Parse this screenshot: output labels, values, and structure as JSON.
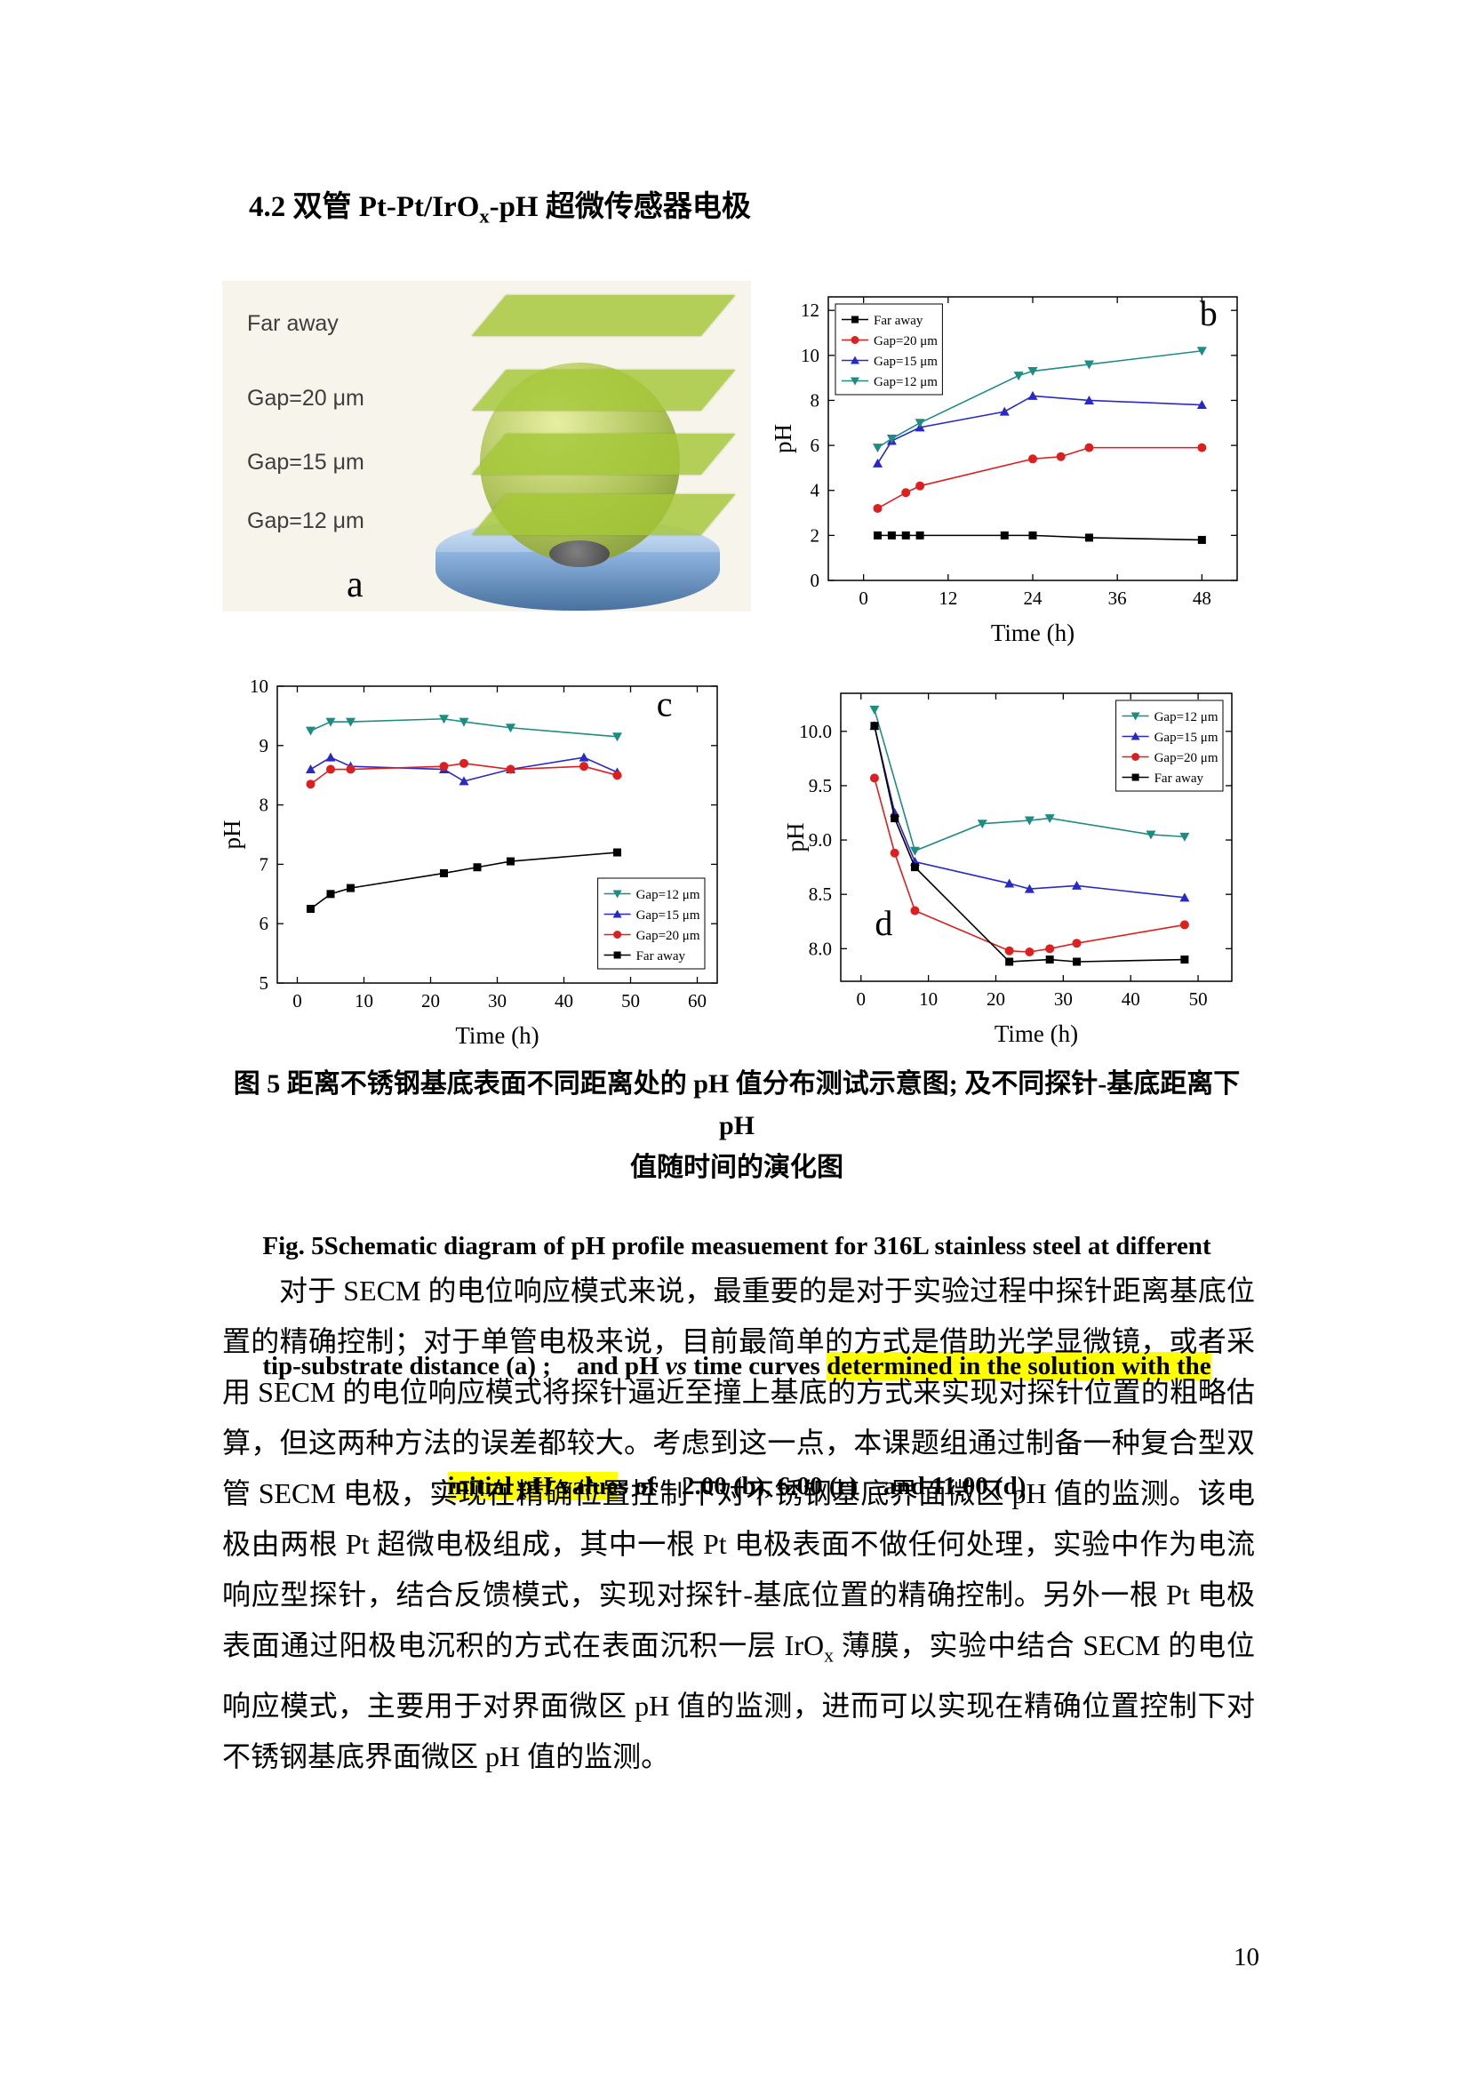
{
  "page": {
    "number": "10"
  },
  "heading": {
    "pre": "4.2 双管 Pt-Pt/IrO",
    "sub": "x",
    "post": "-pH 超微传感器电极"
  },
  "figure": {
    "panel_a": {
      "labels": [
        "Far away",
        "Gap=20 μm",
        "Gap=15 μm",
        "Gap=12 μm"
      ],
      "panel_letter": "a"
    }
  },
  "caption_zh": {
    "line1": "图 5 距离不锈钢基底表面不同距离处的 pH 值分布测试示意图; 及不同探针-基底距离下 pH",
    "line2": "值随时间的演化图"
  },
  "caption_en": {
    "line1": "Fig. 5Schematic diagram of pH profile measuement for 316L stainless steel at different",
    "line2_a": "tip-substrate distance (a) ;    and pH ",
    "line2_vs": "vs",
    "line2_b": " time curves ",
    "line2_hl": "determined in the solution with the",
    "line3_hl": "initial pH value",
    "line3_rest": "s of    2.00 (b), 6.00 (c)    and 11.00 (d)"
  },
  "body": {
    "para_a": "对于 SECM 的电位响应模式来说，最重要的是对于实验过程中探针距离基底位置的精确控制；对于单管电极来说，目前最简单的方式是借助光学显微镜，或者采用 SECM 的电位响应模式将探针逼近至撞上基底的方式来实现对探针位置的粗略估算，但这两种方法的误差都较大。考虑到这一点，本课题组通过制备一种复合型双管 SECM 电极，实现在精确位置控制下对不锈钢基底界面微区 pH 值的监测。该电极由两根 Pt 超微电极组成，其中一根 Pt 电极表面不做任何处理，实验中作为电流响应型探针，结合反馈模式，实现对探针-基底位置的精确控制。另外一根 Pt 电极表面通过阳极电沉积的方式在表面沉积一层 IrO",
    "sub": "x",
    "para_b": " 薄膜，实验中结合 SECM 的电位响应模式，主要用于对界面微区 pH 值的监测，进而可以实现在精确位置控制下对不锈钢基底界面微区 pH 值的监测。"
  },
  "chart_data": [
    {
      "id": "b",
      "type": "line",
      "panel_label": "b",
      "panel_label_pos": [
        0.93,
        0.1
      ],
      "title": "",
      "xlabel": "Time (h)",
      "ylabel": "pH",
      "xlim": [
        -5,
        53
      ],
      "ylim": [
        0,
        12.6
      ],
      "xticks": [
        "0",
        "12",
        "24",
        "36",
        "48"
      ],
      "yticks": [
        "0",
        "2",
        "4",
        "6",
        "8",
        "10",
        "12"
      ],
      "grid": false,
      "legend_pos": "top-left",
      "series": [
        {
          "name": "Far away",
          "color": "#000000",
          "marker": "square",
          "x": [
            2,
            4,
            6,
            8,
            20,
            24,
            32,
            48
          ],
          "y": [
            2.0,
            2.0,
            2.0,
            2.0,
            2.0,
            2.0,
            1.9,
            1.8
          ]
        },
        {
          "name": "Gap=20 μm",
          "color": "#dd1f1f",
          "marker": "circle",
          "x": [
            2,
            6,
            8,
            24,
            28,
            32,
            48
          ],
          "y": [
            3.2,
            3.9,
            4.2,
            5.4,
            5.5,
            5.9,
            5.9
          ]
        },
        {
          "name": "Gap=15 μm",
          "color": "#2929c8",
          "marker": "triangle-up",
          "x": [
            2,
            4,
            8,
            20,
            24,
            32,
            48
          ],
          "y": [
            5.2,
            6.2,
            6.8,
            7.5,
            8.2,
            8.0,
            7.8
          ]
        },
        {
          "name": "Gap=12 μm",
          "color": "#1e8c82",
          "marker": "triangle-down",
          "x": [
            2,
            4,
            8,
            22,
            24,
            32,
            48
          ],
          "y": [
            5.9,
            6.3,
            7.0,
            9.1,
            9.3,
            9.6,
            10.2
          ]
        }
      ]
    },
    {
      "id": "c",
      "type": "line",
      "panel_label": "c",
      "panel_label_pos": [
        0.88,
        0.1
      ],
      "title": "",
      "xlabel": "Time (h)",
      "ylabel": "pH",
      "xlim": [
        -3,
        63
      ],
      "ylim": [
        5,
        10
      ],
      "xticks": [
        "0",
        "10",
        "20",
        "30",
        "40",
        "50",
        "60"
      ],
      "yticks": [
        "5",
        "6",
        "7",
        "8",
        "9",
        "10"
      ],
      "grid": false,
      "legend_pos": "bottom-right",
      "series": [
        {
          "name": "Gap=12 μm",
          "color": "#1e8c82",
          "marker": "triangle-down",
          "x": [
            2,
            5,
            8,
            22,
            25,
            32,
            48
          ],
          "y": [
            9.25,
            9.4,
            9.4,
            9.45,
            9.4,
            9.3,
            9.15
          ]
        },
        {
          "name": "Gap=15 μm",
          "color": "#2929c8",
          "marker": "triangle-up",
          "x": [
            2,
            5,
            8,
            22,
            25,
            32,
            43,
            48
          ],
          "y": [
            8.6,
            8.8,
            8.65,
            8.6,
            8.4,
            8.6,
            8.8,
            8.55
          ]
        },
        {
          "name": "Gap=20 μm",
          "color": "#dd1f1f",
          "marker": "circle",
          "x": [
            2,
            5,
            8,
            22,
            25,
            32,
            43,
            48
          ],
          "y": [
            8.35,
            8.6,
            8.6,
            8.65,
            8.7,
            8.6,
            8.65,
            8.5
          ]
        },
        {
          "name": "Far away",
          "color": "#000000",
          "marker": "square",
          "x": [
            2,
            5,
            8,
            22,
            27,
            32,
            48
          ],
          "y": [
            6.25,
            6.5,
            6.6,
            6.85,
            6.95,
            7.05,
            7.2
          ]
        }
      ]
    },
    {
      "id": "d",
      "type": "line",
      "panel_label": "d",
      "panel_label_pos": [
        0.11,
        0.84
      ],
      "title": "",
      "xlabel": "Time (h)",
      "ylabel": "pH",
      "xlim": [
        -3,
        55
      ],
      "ylim": [
        7.7,
        10.35
      ],
      "xticks": [
        "0",
        "10",
        "20",
        "30",
        "40",
        "50"
      ],
      "yticks": [
        "8.0",
        "8.5",
        "9.0",
        "9.5",
        "10.0"
      ],
      "grid": false,
      "legend_pos": "top-right",
      "series": [
        {
          "name": "Gap=12 μm",
          "color": "#1e8c82",
          "marker": "triangle-down",
          "x": [
            2,
            8,
            18,
            25,
            28,
            43,
            48
          ],
          "y": [
            10.2,
            8.9,
            9.15,
            9.18,
            9.2,
            9.05,
            9.03
          ]
        },
        {
          "name": "Gap=15 μm",
          "color": "#2929c8",
          "marker": "triangle-up",
          "x": [
            2,
            5,
            8,
            22,
            25,
            32,
            48
          ],
          "y": [
            10.05,
            9.25,
            8.8,
            8.6,
            8.55,
            8.58,
            8.47
          ]
        },
        {
          "name": "Gap=20 μm",
          "color": "#dd1f1f",
          "marker": "circle",
          "x": [
            2,
            5,
            8,
            22,
            25,
            28,
            32,
            48
          ],
          "y": [
            9.57,
            8.88,
            8.35,
            7.98,
            7.97,
            8.0,
            8.05,
            8.22
          ]
        },
        {
          "name": "Far away",
          "color": "#000000",
          "marker": "square",
          "x": [
            2,
            5,
            8,
            22,
            28,
            32,
            48
          ],
          "y": [
            10.05,
            9.2,
            8.75,
            7.88,
            7.9,
            7.88,
            7.9
          ]
        }
      ]
    }
  ]
}
